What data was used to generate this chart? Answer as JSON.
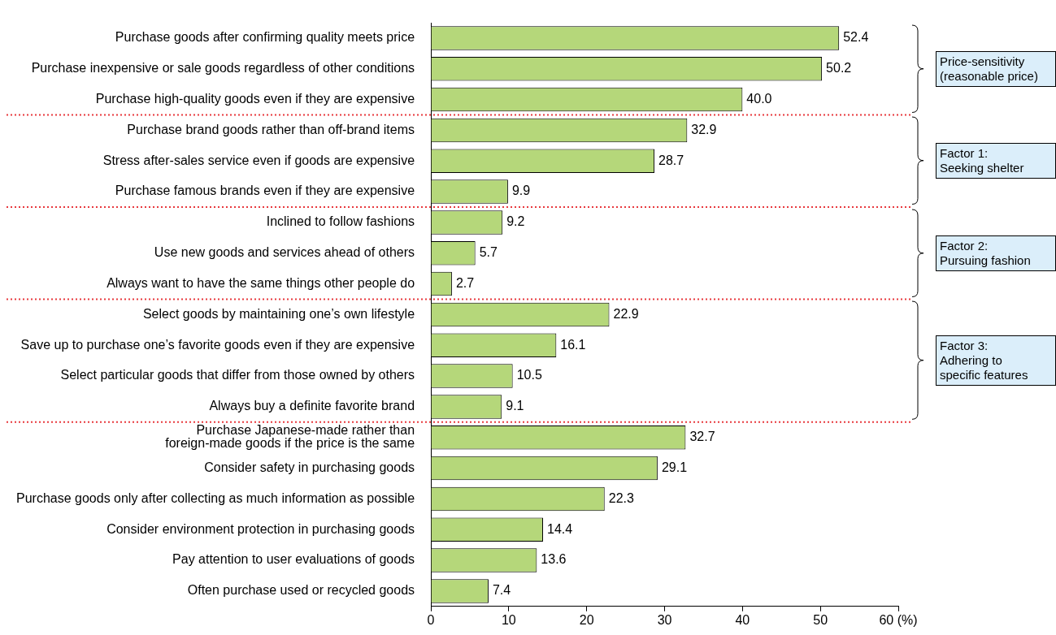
{
  "chart_data": {
    "type": "bar",
    "orientation": "horizontal",
    "categories": [
      "Purchase goods after confirming quality meets price",
      "Purchase inexpensive or sale goods regardless of other conditions",
      "Purchase high-quality goods even if they are expensive",
      "Purchase brand goods rather than off-brand items",
      "Stress after-sales service even if goods are expensive",
      "Purchase famous brands even if they are expensive",
      "Inclined to follow fashions",
      "Use new goods and services ahead of others",
      "Always want to have the same things other people do",
      "Select goods by maintaining one’s own lifestyle",
      "Save up to purchase one’s favorite goods even if they are expensive",
      "Select particular goods that differ from those owned by others",
      "Always buy a definite favorite brand",
      "Purchase Japanese-made rather than\nforeign-made goods if the price is the same",
      "Consider safety in purchasing goods",
      "Purchase goods only after collecting as much information as possible",
      "Consider environment protection in purchasing goods",
      "Pay attention to user evaluations of goods",
      "Often purchase used or recycled goods"
    ],
    "values": [
      52.4,
      50.2,
      40.0,
      32.9,
      28.7,
      9.9,
      9.2,
      5.7,
      2.7,
      22.9,
      16.1,
      10.5,
      9.1,
      32.7,
      29.1,
      22.3,
      14.4,
      13.6,
      7.4
    ],
    "value_labels": [
      "52.4",
      "50.2",
      "40.0",
      "32.9",
      "28.7",
      "9.9",
      "9.2",
      "5.7",
      "2.7",
      "22.9",
      "16.1",
      "10.5",
      "9.1",
      "32.7",
      "29.1",
      "22.3",
      "14.4",
      "13.6",
      "7.4"
    ],
    "color": "#b5d77a",
    "xlim": [
      0,
      60
    ],
    "xticks": [
      0,
      10,
      20,
      30,
      40,
      50,
      {
        "value": 60,
        "label": "60 (%)"
      }
    ],
    "grid": false,
    "annotations": [
      "Price-sensitivity\n(reasonable price)",
      "Factor 1:\nSeeking shelter",
      "Factor 2:\nPursuing fashion",
      "Factor 3:\nAdhering to\nspecific features"
    ]
  }
}
